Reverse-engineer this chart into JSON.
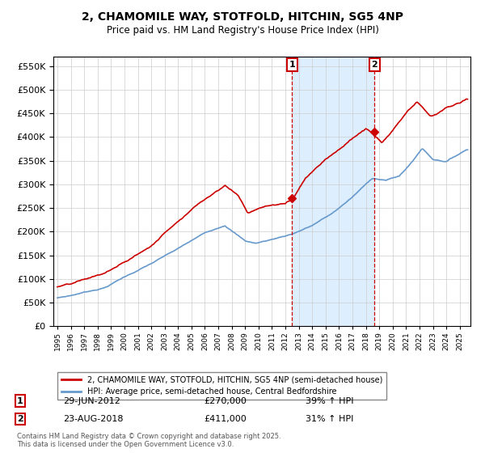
{
  "title1": "2, CHAMOMILE WAY, STOTFOLD, HITCHIN, SG5 4NP",
  "title2": "Price paid vs. HM Land Registry's House Price Index (HPI)",
  "legend_line1": "2, CHAMOMILE WAY, STOTFOLD, HITCHIN, SG5 4NP (semi-detached house)",
  "legend_line2": "HPI: Average price, semi-detached house, Central Bedfordshire",
  "transaction1_price": 270000,
  "transaction1_label": "29-JUN-2012",
  "transaction1_pct": "39% ↑ HPI",
  "transaction1_yr": 2012.497,
  "transaction2_price": 411000,
  "transaction2_label": "23-AUG-2018",
  "transaction2_pct": "31% ↑ HPI",
  "transaction2_yr": 2018.644,
  "red_color": "#cc0000",
  "blue_color": "#6699cc",
  "shade_color": "#ddeeff",
  "background_color": "#ffffff",
  "grid_color": "#cccccc",
  "ylim_min": 0,
  "ylim_max": 570000,
  "xlim_min": 1994.7,
  "xlim_max": 2025.8,
  "footer": "Contains HM Land Registry data © Crown copyright and database right 2025.\nThis data is licensed under the Open Government Licence v3.0."
}
